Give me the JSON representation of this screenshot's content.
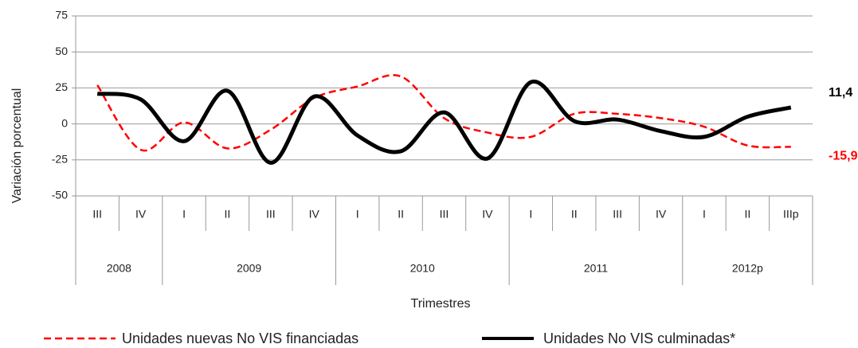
{
  "chart_data": {
    "type": "line",
    "y_label": "Variación porcentual",
    "x_label": "Trimestres",
    "categories": [
      "III",
      "IV",
      "I",
      "II",
      "III",
      "IV",
      "I",
      "II",
      "III",
      "IV",
      "I",
      "II",
      "III",
      "IV",
      "I",
      "II",
      "IIIp"
    ],
    "groups": [
      "2008",
      null,
      "2009",
      null,
      null,
      null,
      "2010",
      null,
      null,
      null,
      "2011",
      null,
      null,
      null,
      "2012p",
      null,
      null
    ],
    "series": [
      {
        "name": "Unidades nuevas No VIS financiadas",
        "color": "#ff0000",
        "dash": true,
        "values": [
          27,
          -18,
          1,
          -17,
          -4,
          18,
          26,
          33,
          4,
          -6,
          -9,
          7,
          7,
          4,
          -2,
          -15,
          -15.9
        ],
        "value_labels": [
          null,
          null,
          null,
          null,
          null,
          null,
          null,
          null,
          null,
          null,
          null,
          null,
          null,
          null,
          null,
          null,
          "-15,9"
        ]
      },
      {
        "name": "Unidades No VIS culminadas*",
        "color": "#000000",
        "dash": false,
        "values": [
          21,
          17,
          -12,
          23,
          -27,
          19,
          -8,
          -19,
          8,
          -24,
          29,
          2,
          3,
          -5,
          -9,
          5,
          11.4
        ],
        "value_labels": [
          null,
          null,
          null,
          null,
          null,
          null,
          null,
          null,
          null,
          null,
          null,
          null,
          null,
          null,
          null,
          null,
          "11,4"
        ]
      }
    ],
    "ylim": [
      -50,
      75
    ],
    "yticks": [
      -50,
      -25,
      0,
      25,
      50,
      75
    ],
    "grid": true
  }
}
